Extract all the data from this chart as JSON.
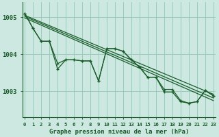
{
  "background_color": "#cce8e0",
  "plot_bg_color": "#cce8e0",
  "grid_color": "#99ccbb",
  "line_color": "#1a5c2a",
  "xlabel": "Graphe pression niveau de la mer (hPa)",
  "yticks": [
    1003,
    1004,
    1005
  ],
  "ylim": [
    1002.3,
    1005.4
  ],
  "xlim": [
    -0.3,
    23.3
  ],
  "xticks": [
    0,
    1,
    2,
    3,
    4,
    5,
    6,
    7,
    8,
    9,
    10,
    11,
    12,
    13,
    14,
    15,
    16,
    17,
    18,
    19,
    20,
    21,
    22,
    23
  ],
  "zigzag1": [
    1005.1,
    1004.7,
    1004.35,
    1004.35,
    1003.75,
    1003.85,
    1003.85,
    1003.82,
    1003.82,
    1003.28,
    1004.15,
    1004.15,
    1004.08,
    1003.85,
    1003.65,
    1003.38,
    1003.38,
    1003.05,
    1003.05,
    1002.75,
    1002.68,
    1002.72,
    1003.02,
    1002.88
  ],
  "zigzag2_x": [
    0,
    1,
    2,
    3,
    4,
    5,
    6,
    7,
    8,
    9,
    10,
    11,
    12,
    13,
    14,
    15,
    16,
    17,
    18,
    19,
    20,
    21,
    22,
    23
  ],
  "zigzag2": [
    1005.1,
    1004.7,
    1004.35,
    1004.35,
    1003.6,
    1003.85,
    1003.85,
    1003.82,
    1003.82,
    1003.28,
    1004.15,
    1004.15,
    1004.08,
    1003.85,
    1003.65,
    1003.38,
    1003.38,
    1002.98,
    1002.98,
    1002.72,
    1002.68,
    1002.72,
    1003.02,
    1002.88
  ],
  "trend1_x": [
    0,
    23
  ],
  "trend1_y": [
    1005.05,
    1002.92
  ],
  "trend2_x": [
    0,
    23
  ],
  "trend2_y": [
    1005.02,
    1002.82
  ],
  "trend3_x": [
    0,
    23
  ],
  "trend3_y": [
    1004.98,
    1002.75
  ]
}
